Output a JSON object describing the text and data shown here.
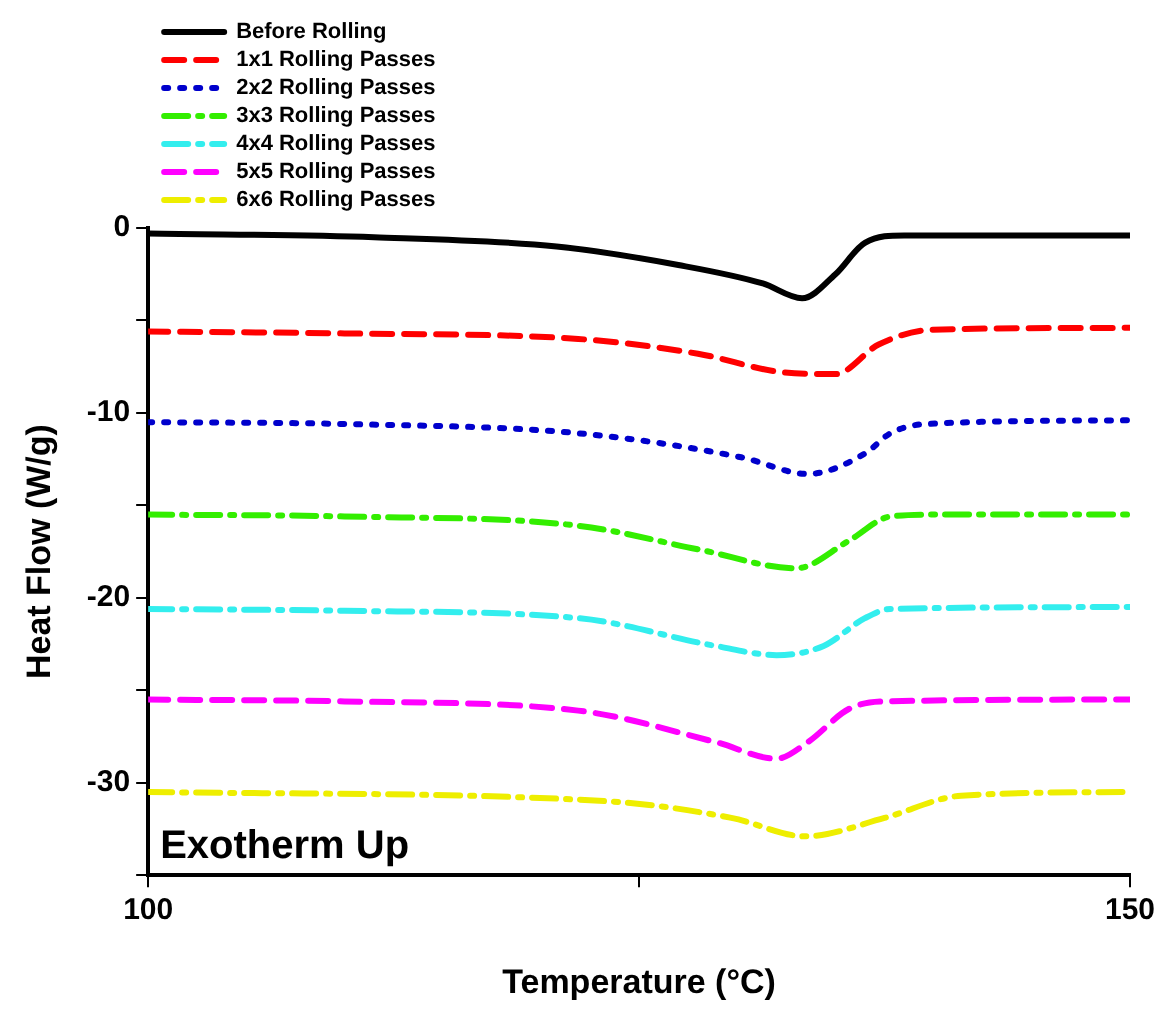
{
  "chart_data": {
    "type": "line",
    "xlabel": "Temperature (°C)",
    "ylabel": "Heat Flow (W/g)",
    "xlim": [
      100,
      150
    ],
    "xticks": [
      100,
      {
        "value": 125,
        "label": null
      },
      150
    ],
    "ylim": [
      -35,
      0
    ],
    "yticks": [
      {
        "value": -35,
        "label": null
      },
      -30,
      {
        "value": -25,
        "label": null
      },
      -20,
      {
        "value": -15,
        "label": null
      },
      -10,
      {
        "value": -5,
        "label": null
      },
      0
    ],
    "grid": false,
    "legend": "top left",
    "marker": "none",
    "annotations": [
      "Exotherm Up"
    ],
    "series": [
      {
        "name": "Before Rolling",
        "color": "#000000",
        "line_style": "solid",
        "x": [
          100,
          111.5,
          120.8,
          127,
          131.3,
          133.3,
          135,
          136.5,
          138.5,
          150
        ],
        "values": [
          -0.3,
          -0.5,
          -1.0,
          -2,
          -3,
          -3.8,
          -2.5,
          -0.8,
          -0.4,
          -0.4
        ]
      },
      {
        "name": "1x1 Rolling Passes",
        "color": "#ff0000",
        "line_style": "dashed",
        "x": [
          100,
          110,
          121.9,
          128,
          132.3,
          135,
          137.2,
          139.9,
          150
        ],
        "values": [
          -5.6,
          -5.7,
          -6.0,
          -6.8,
          -7.8,
          -7.9,
          -6.3,
          -5.5,
          -5.4
        ]
      },
      {
        "name": "2x2 Rolling Passes",
        "color": "#0000cc",
        "line_style": "dotted",
        "x": [
          100,
          110,
          121.9,
          130.2,
          133.6,
          136.5,
          137.8,
          139.6,
          150
        ],
        "values": [
          -10.5,
          -10.6,
          -11.1,
          -12.4,
          -13.3,
          -12.2,
          -11.1,
          -10.6,
          -10.4
        ]
      },
      {
        "name": "3x3 Rolling Passes",
        "color": "#33ee00",
        "line_style": "dashdot",
        "x": [
          100,
          110,
          121.9,
          128.1,
          133,
          135.7,
          137.8,
          140,
          150
        ],
        "values": [
          -15.5,
          -15.6,
          -16.1,
          -17.4,
          -18.4,
          -16.9,
          -15.6,
          -15.5,
          -15.5
        ]
      },
      {
        "name": "4x4 Rolling Passes",
        "color": "#33eeee",
        "line_style": "dashdot",
        "x": [
          100,
          110,
          121.9,
          128.9,
          132,
          134.4,
          136.5,
          137.8,
          150
        ],
        "values": [
          -20.6,
          -20.7,
          -21.1,
          -22.6,
          -23.1,
          -22.6,
          -21.1,
          -20.6,
          -20.5
        ]
      },
      {
        "name": "5x5 Rolling Passes",
        "color": "#ff00ff",
        "line_style": "dashed",
        "x": [
          100,
          110,
          121.9,
          128.9,
          132,
          133.6,
          135.7,
          137.5,
          150
        ],
        "values": [
          -25.5,
          -25.6,
          -26.1,
          -27.8,
          -28.7,
          -27.8,
          -26.0,
          -25.6,
          -25.5
        ]
      },
      {
        "name": "6x6 Rolling Passes",
        "color": "#eeee00",
        "line_style": "dashdot",
        "x": [
          100,
          123.4,
          129.7,
          133.5,
          137.5,
          141.4,
          150
        ],
        "values": [
          -30.5,
          -31.0,
          -31.9,
          -32.9,
          -31.9,
          -30.7,
          -30.5
        ]
      }
    ]
  }
}
